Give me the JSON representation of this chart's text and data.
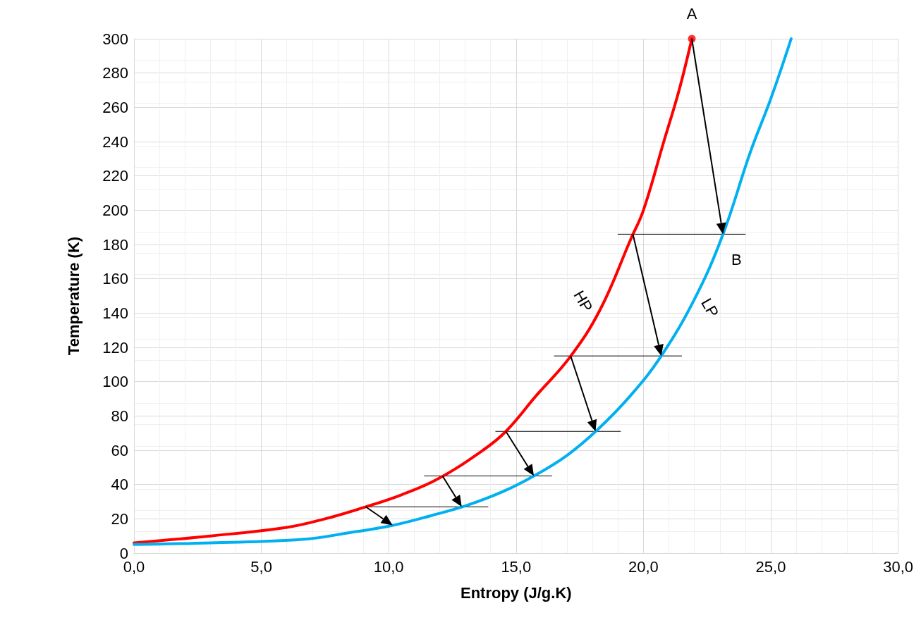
{
  "chart_data": {
    "type": "line",
    "xlabel": "Entropy (J/g.K)",
    "ylabel": "Temperature (K)",
    "xlim": [
      0,
      30
    ],
    "xticks": [
      {
        "value": 0,
        "label": "0,0"
      },
      {
        "value": 5,
        "label": "5,0"
      },
      {
        "value": 10,
        "label": "10,0"
      },
      {
        "value": 15,
        "label": "15,0"
      },
      {
        "value": 20,
        "label": "20,0"
      },
      {
        "value": 25,
        "label": "25,0"
      },
      {
        "value": 30,
        "label": "30,0"
      }
    ],
    "ylim": [
      0,
      300
    ],
    "yticks": [
      0,
      20,
      40,
      60,
      80,
      100,
      120,
      140,
      160,
      180,
      200,
      220,
      240,
      260,
      280,
      300
    ],
    "grid": true,
    "marker": "none",
    "series": [
      {
        "color": "#ff0000",
        "x": [
          0,
          3,
          6,
          7.5,
          9.1,
          10.5,
          11.9,
          13.7,
          14.6,
          15.8,
          17.1,
          18.3,
          19.5,
          20,
          20.8,
          21.4,
          21.9
        ],
        "values": [
          6,
          10,
          15,
          20,
          27,
          34,
          43,
          60,
          71,
          92,
          114,
          142,
          183,
          200,
          240,
          270,
          300
        ]
      },
      {
        "color": "#00b0f0",
        "x": [
          0,
          3,
          6.6,
          8.5,
          10.1,
          11.7,
          13.1,
          14.5,
          15.7,
          17,
          18.2,
          19.5,
          20.7,
          22,
          23.1,
          24.2,
          25,
          25.8
        ],
        "values": [
          5,
          6,
          8,
          12,
          16,
          22,
          28,
          36,
          45,
          57,
          72,
          92,
          115,
          148,
          185,
          234,
          265,
          300
        ]
      },
      {
        "type": "scatter",
        "marker": "circle",
        "color": "#ff0000",
        "x": [
          21.9
        ],
        "values": [
          300
        ]
      },
      {
        "color": "#000000",
        "x": [
          19,
          24
        ],
        "values": [
          186,
          186
        ]
      },
      {
        "color": "#000000",
        "x": [
          16.5,
          21.5
        ],
        "values": [
          115,
          115
        ]
      },
      {
        "color": "#000000",
        "x": [
          14.2,
          19.1
        ],
        "values": [
          71,
          71
        ]
      },
      {
        "color": "#000000",
        "x": [
          11.4,
          16.4
        ],
        "values": [
          45,
          45
        ]
      },
      {
        "color": "#000000",
        "x": [
          9,
          13.9
        ],
        "values": [
          27,
          27
        ]
      }
    ],
    "annotations": [
      {
        "text": "A",
        "x": 21.9,
        "y": 300
      },
      {
        "text": "B",
        "x": 23.1,
        "y": 186
      },
      {
        "text": "HP",
        "x": 18.3,
        "y": 142
      },
      {
        "text": "LP",
        "x": 22,
        "y": 148
      }
    ]
  }
}
